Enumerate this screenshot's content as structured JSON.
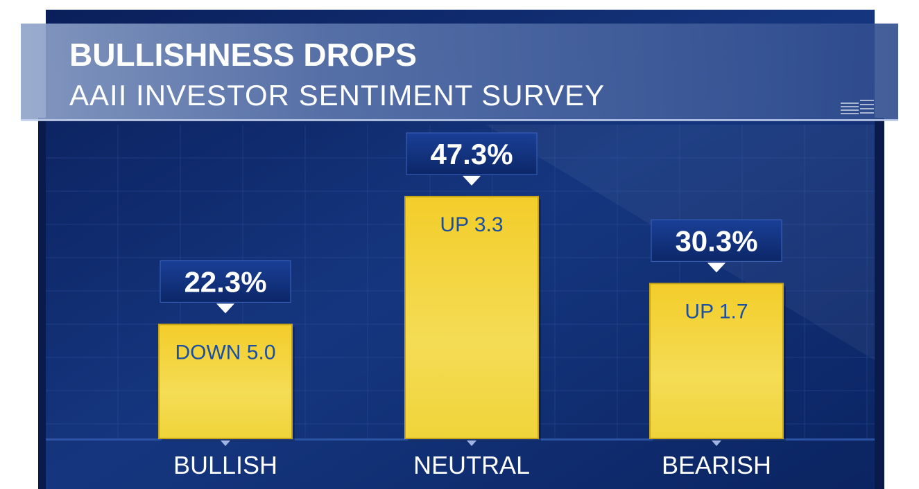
{
  "header": {
    "title": "BULLISHNESS DROPS",
    "subtitle": "AAII INVESTOR SENTIMENT SURVEY"
  },
  "chart_data": {
    "type": "bar",
    "title": "BULLISHNESS DROPS",
    "subtitle": "AAII INVESTOR SENTIMENT SURVEY",
    "categories": [
      "BULLISH",
      "NEUTRAL",
      "BEARISH"
    ],
    "values": [
      22.3,
      47.3,
      30.3
    ],
    "value_labels": [
      "22.3%",
      "47.3%",
      "30.3%"
    ],
    "change_labels": [
      "DOWN 5.0",
      "UP 3.3",
      "UP 1.7"
    ],
    "unit": "%",
    "ylim": [
      0,
      50
    ],
    "grid": true,
    "legend": "none"
  },
  "colors": {
    "background": "#0d2a6e",
    "bar": "#f2cf2c",
    "value_box": "#0f2f7c",
    "change_text": "#1b4fa0",
    "text": "#ffffff"
  }
}
